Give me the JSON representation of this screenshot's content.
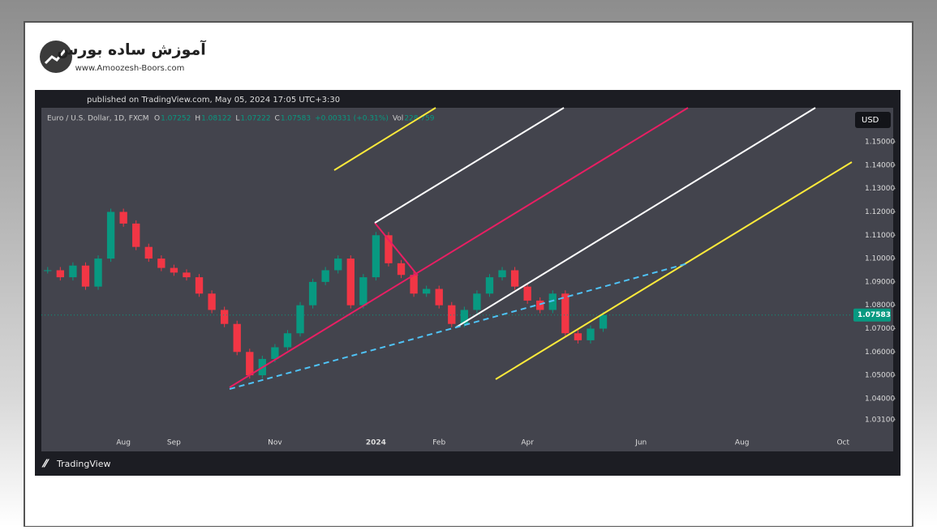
{
  "site": {
    "name": "آموزش ساده بورس",
    "url": "www.Amoozesh-Boors.com"
  },
  "chart_data": {
    "type": "candlestick",
    "published": "published on TradingView.com, May 05, 2024 17:05 UTC+3:30",
    "symbol": "Euro / U.S. Dollar, 1D, FXCM",
    "ohlc": [
      {
        "key": "O",
        "value": "1.07252"
      },
      {
        "key": "H",
        "value": "1.08122"
      },
      {
        "key": "L",
        "value": "1.07222"
      },
      {
        "key": "C",
        "value": "1.07583"
      }
    ],
    "change": "+0.00331 (+0.31%)",
    "volume": {
      "key": "Vol",
      "value": "228.759"
    },
    "currency": "USD",
    "last_price": 1.07583,
    "brand": "TradingView",
    "categories": [
      null,
      null,
      null,
      null,
      null,
      null,
      "Aug",
      null,
      null,
      null,
      "Sep",
      null,
      null,
      null,
      null,
      null,
      null,
      null,
      "Nov",
      null,
      null,
      null,
      null,
      null,
      null,
      null,
      "2024",
      null,
      null,
      null,
      null,
      "Feb",
      null,
      null,
      null,
      null,
      null,
      null,
      "Apr",
      null,
      null,
      null,
      null,
      null,
      null,
      null,
      null,
      "Jun",
      null,
      null,
      null,
      null,
      null,
      null,
      null,
      "Aug",
      null,
      null,
      null,
      null,
      null,
      null,
      null,
      "Oct"
    ],
    "close": [
      1.095,
      1.092,
      1.097,
      1.088,
      1.1,
      1.12,
      1.115,
      1.105,
      1.1,
      1.096,
      1.094,
      1.092,
      1.085,
      1.078,
      1.072,
      1.06,
      1.05,
      1.057,
      1.062,
      1.068,
      1.08,
      1.09,
      1.095,
      1.1,
      1.08,
      1.092,
      1.11,
      1.098,
      1.093,
      1.085,
      1.087,
      1.08,
      1.072,
      1.078,
      1.085,
      1.092,
      1.095,
      1.088,
      1.082,
      1.078,
      1.085,
      1.068,
      1.065,
      1.07,
      1.07583,
      null,
      null,
      null,
      null,
      null,
      null,
      null,
      null,
      null,
      null,
      null,
      null,
      null,
      null,
      null,
      null,
      null,
      null,
      null
    ],
    "up_color": "#089981",
    "down_color": "#f23645",
    "ylim": [
      1.0174,
      1.1646
    ],
    "yticks": [
      {
        "value": 1.15,
        "label": "1.15000"
      },
      {
        "value": 1.14,
        "label": "1.14000"
      },
      {
        "value": 1.13,
        "label": "1.13000"
      },
      {
        "value": 1.12,
        "label": "1.12000"
      },
      {
        "value": 1.11,
        "label": "1.11000"
      },
      {
        "value": 1.1,
        "label": "1.10000"
      },
      {
        "value": 1.09,
        "label": "1.09000"
      },
      {
        "value": 1.08,
        "label": "1.08000"
      },
      {
        "value": 1.07,
        "label": "1.07000"
      },
      {
        "value": 1.06,
        "label": "1.06000"
      },
      {
        "value": 1.05,
        "label": "1.05000"
      },
      {
        "value": 1.04,
        "label": "1.04000"
      },
      {
        "value": 1.031,
        "label": "1.03100"
      }
    ]
  }
}
